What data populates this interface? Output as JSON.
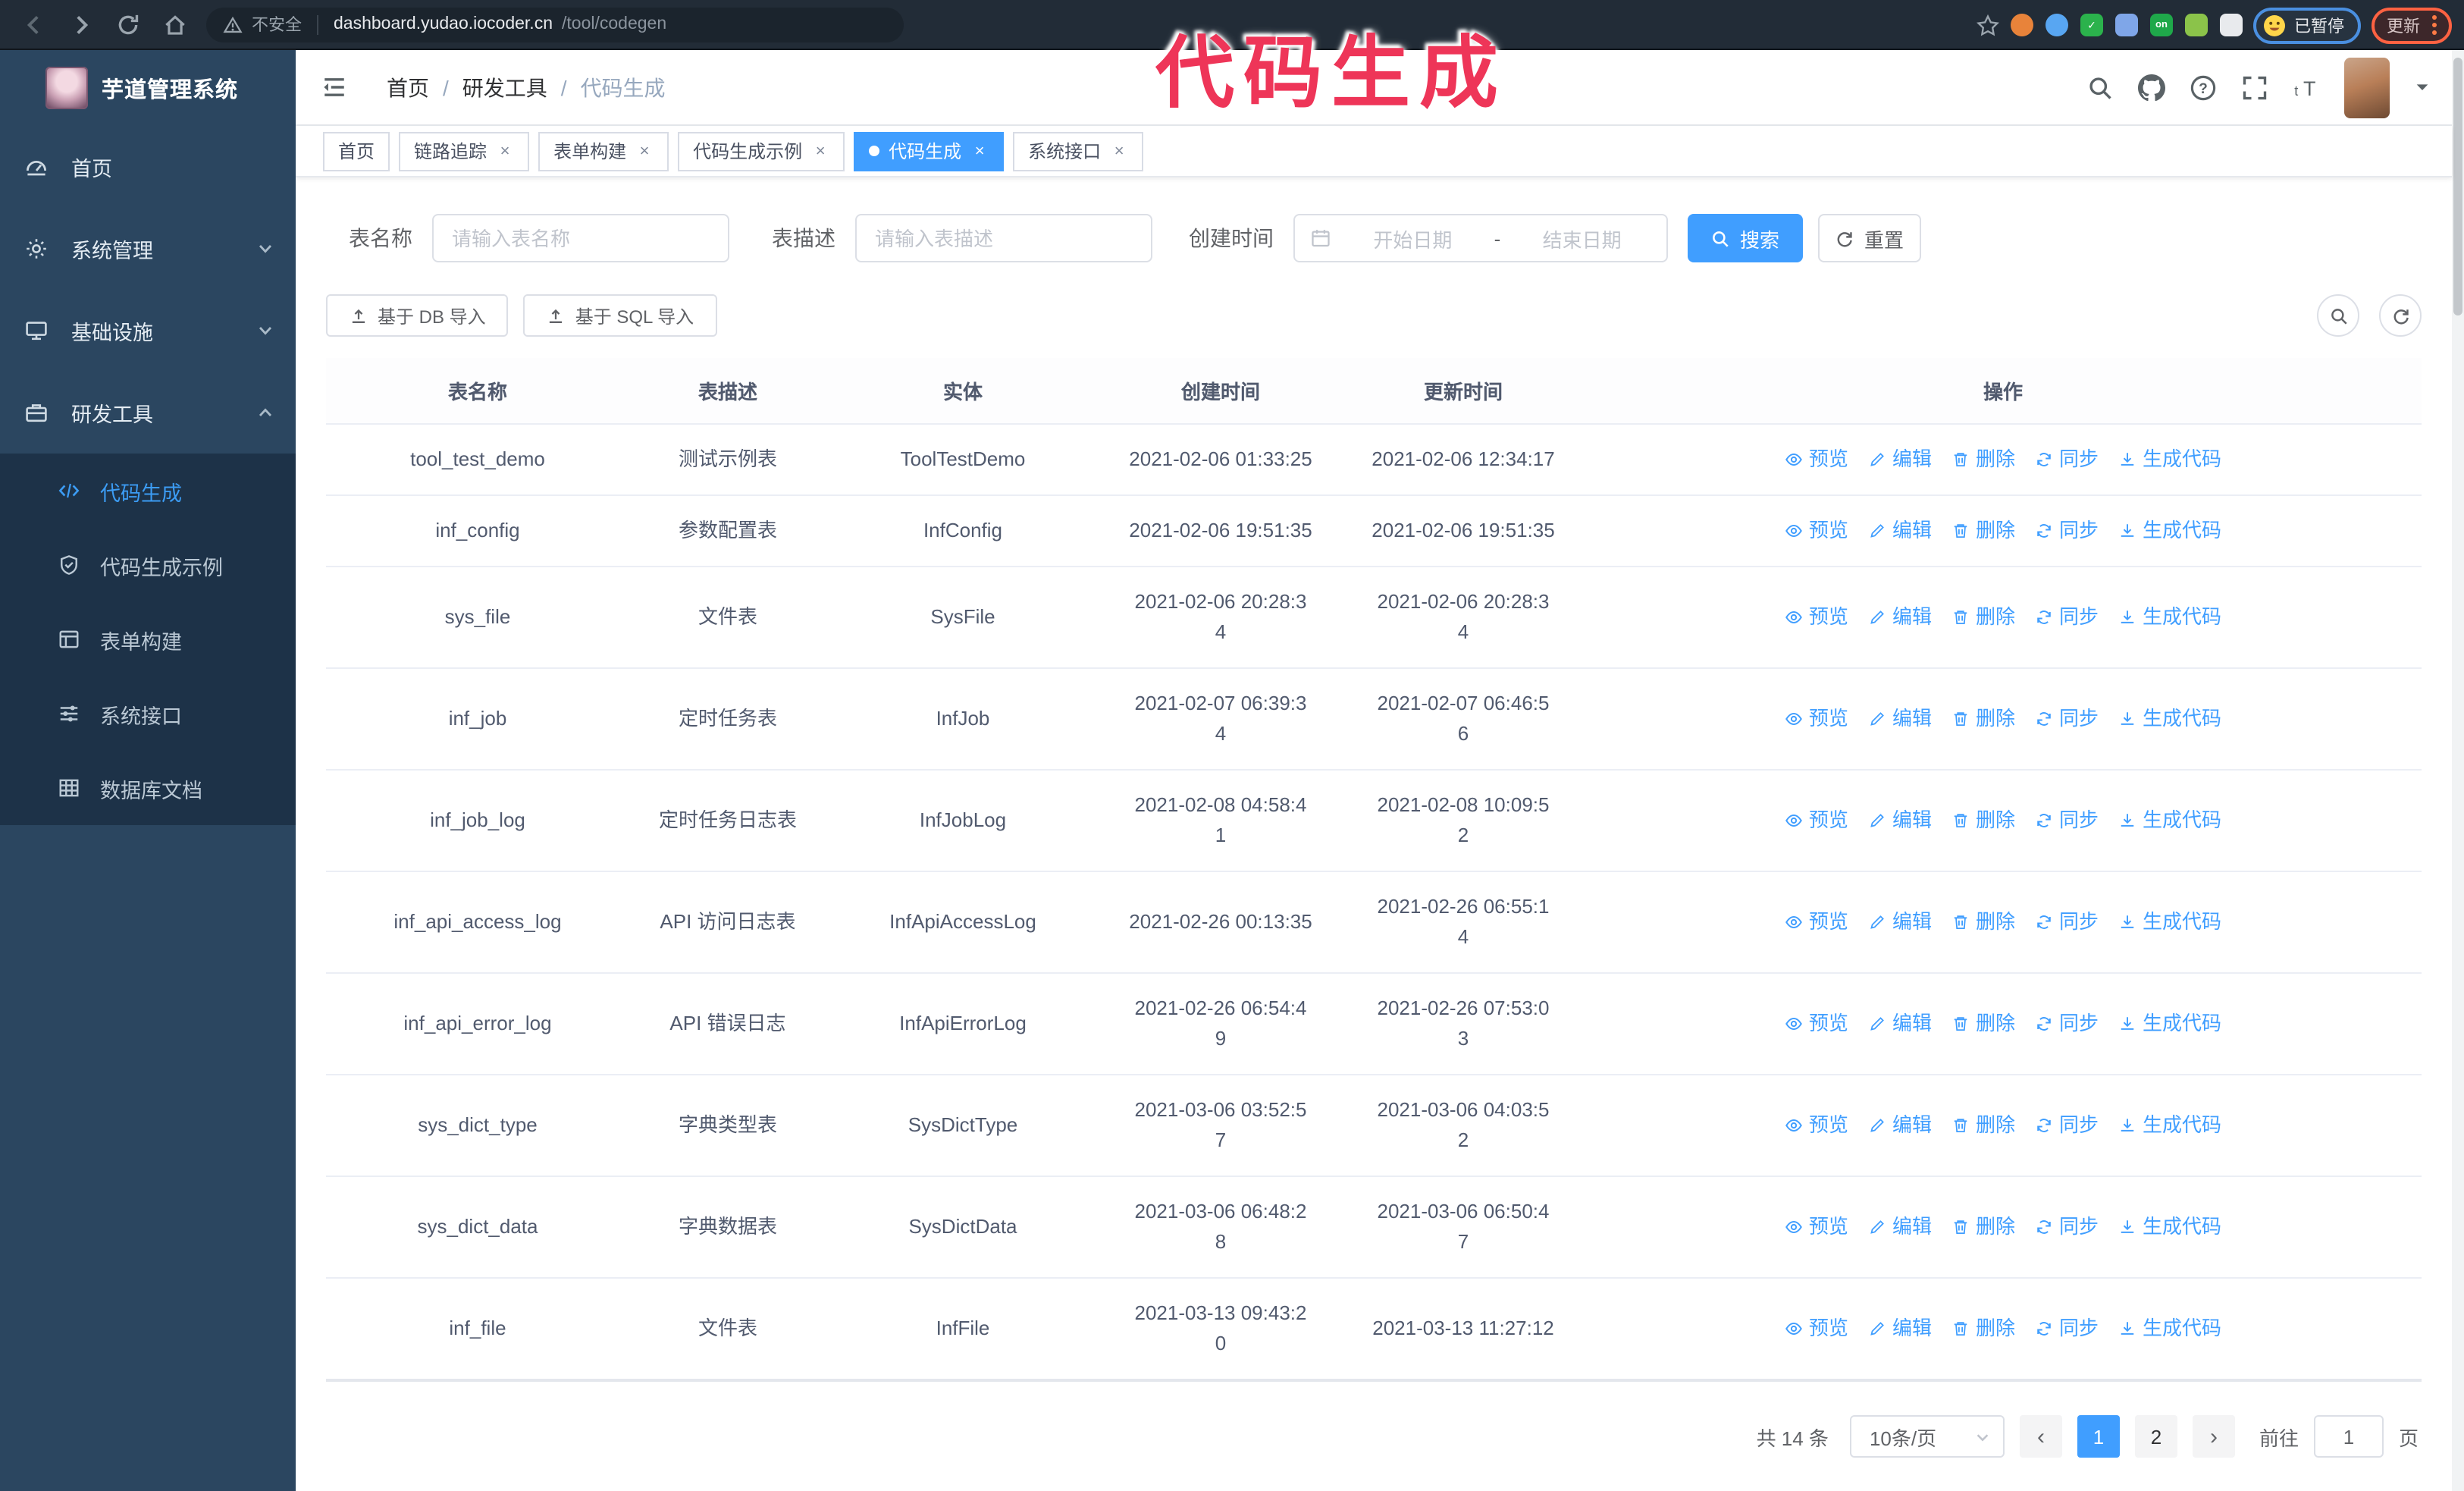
{
  "colors": {
    "accent": "#409eff",
    "annotation": "#ee3558",
    "sidebar_bg": "#2b4660",
    "submenu_bg": "#1d3248"
  },
  "annotation": {
    "text": "代码生成"
  },
  "browser": {
    "security_label": "不安全",
    "url_host": "dashboard.yudao.iocoder.cn",
    "url_path": "/tool/codegen",
    "paused_badge": "已暂停",
    "update_badge": "更新",
    "extensions": [
      {
        "name": "ext-orange",
        "color": "#e8833a",
        "label": ""
      },
      {
        "name": "ext-blue-drop",
        "color": "#58a6f2",
        "label": ""
      },
      {
        "name": "ext-green-check",
        "color": "#2bb24c",
        "label": "✓"
      },
      {
        "name": "ext-grid",
        "color": "#7fa6e8",
        "label": ""
      },
      {
        "name": "ext-on",
        "color": "#1fa84a",
        "label": "on"
      },
      {
        "name": "ext-alien",
        "color": "#8bc34a",
        "label": ""
      },
      {
        "name": "ext-puzzle",
        "color": "#e8eaed",
        "label": ""
      }
    ]
  },
  "sidebar": {
    "app_title": "芋道管理系统",
    "items": [
      {
        "label": "首页",
        "icon": "home-icon",
        "chevron": ""
      },
      {
        "label": "系统管理",
        "icon": "gear-icon",
        "chevron": "down"
      },
      {
        "label": "基础设施",
        "icon": "infrastructure-icon",
        "chevron": "down"
      },
      {
        "label": "研发工具",
        "icon": "dev-tools-icon",
        "chevron": "up"
      }
    ],
    "sub_items": [
      {
        "label": "代码生成",
        "icon": "code-icon",
        "active": true
      },
      {
        "label": "代码生成示例",
        "icon": "example-icon",
        "active": false
      },
      {
        "label": "表单构建",
        "icon": "form-builder-icon",
        "active": false
      },
      {
        "label": "系统接口",
        "icon": "api-icon",
        "active": false
      },
      {
        "label": "数据库文档",
        "icon": "database-doc-icon",
        "active": false
      }
    ]
  },
  "breadcrumb": {
    "items": [
      "首页",
      "研发工具",
      "代码生成"
    ],
    "separator": "/"
  },
  "tabs": [
    {
      "label": "首页",
      "closable": false,
      "active": false
    },
    {
      "label": "链路追踪",
      "closable": true,
      "active": false
    },
    {
      "label": "表单构建",
      "closable": true,
      "active": false
    },
    {
      "label": "代码生成示例",
      "closable": true,
      "active": false
    },
    {
      "label": "代码生成",
      "closable": true,
      "active": true
    },
    {
      "label": "系统接口",
      "closable": true,
      "active": false
    }
  ],
  "search": {
    "name_label": "表名称",
    "name_placeholder": "请输入表名称",
    "desc_label": "表描述",
    "desc_placeholder": "请输入表描述",
    "time_label": "创建时间",
    "start_placeholder": "开始日期",
    "range_separator": "-",
    "end_placeholder": "结束日期",
    "search_button": "搜索",
    "reset_button": "重置"
  },
  "toolbar": {
    "import_db_button": "基于 DB 导入",
    "import_sql_button": "基于 SQL 导入"
  },
  "table": {
    "columns": [
      "表名称",
      "表描述",
      "实体",
      "创建时间",
      "更新时间",
      "操作"
    ],
    "actions": [
      {
        "name": "preview",
        "label": "预览",
        "icon": "eye-icon"
      },
      {
        "name": "edit",
        "label": "编辑",
        "icon": "edit-icon"
      },
      {
        "name": "delete",
        "label": "删除",
        "icon": "delete-icon"
      },
      {
        "name": "sync",
        "label": "同步",
        "icon": "sync-icon"
      },
      {
        "name": "generate",
        "label": "生成代码",
        "icon": "download-icon"
      }
    ],
    "rows": [
      {
        "name": "tool_test_demo",
        "desc": "测试示例表",
        "entity": "ToolTestDemo",
        "created": "2021-02-06 01:33:25",
        "updated": "2021-02-06 12:34:17"
      },
      {
        "name": "inf_config",
        "desc": "参数配置表",
        "entity": "InfConfig",
        "created": "2021-02-06 19:51:35",
        "updated": "2021-02-06 19:51:35"
      },
      {
        "name": "sys_file",
        "desc": "文件表",
        "entity": "SysFile",
        "created": "2021-02-06 20:28:3\n4",
        "updated": "2021-02-06 20:28:3\n4"
      },
      {
        "name": "inf_job",
        "desc": "定时任务表",
        "entity": "InfJob",
        "created": "2021-02-07 06:39:3\n4",
        "updated": "2021-02-07 06:46:5\n6"
      },
      {
        "name": "inf_job_log",
        "desc": "定时任务日志表",
        "entity": "InfJobLog",
        "created": "2021-02-08 04:58:4\n1",
        "updated": "2021-02-08 10:09:5\n2"
      },
      {
        "name": "inf_api_access_log",
        "desc": "API 访问日志表",
        "entity": "InfApiAccessLog",
        "created": "2021-02-26 00:13:35",
        "updated": "2021-02-26 06:55:1\n4"
      },
      {
        "name": "inf_api_error_log",
        "desc": "API 错误日志",
        "entity": "InfApiErrorLog",
        "created": "2021-02-26 06:54:4\n9",
        "updated": "2021-02-26 07:53:0\n3"
      },
      {
        "name": "sys_dict_type",
        "desc": "字典类型表",
        "entity": "SysDictType",
        "created": "2021-03-06 03:52:5\n7",
        "updated": "2021-03-06 04:03:5\n2"
      },
      {
        "name": "sys_dict_data",
        "desc": "字典数据表",
        "entity": "SysDictData",
        "created": "2021-03-06 06:48:2\n8",
        "updated": "2021-03-06 06:50:4\n7"
      },
      {
        "name": "inf_file",
        "desc": "文件表",
        "entity": "InfFile",
        "created": "2021-03-13 09:43:2\n0",
        "updated": "2021-03-13 11:27:12"
      }
    ]
  },
  "pagination": {
    "total": "共 14 条",
    "page_size": "10条/页",
    "pages": [
      "1",
      "2"
    ],
    "active_page": "1",
    "prev": "‹",
    "next": "›",
    "goto_label": "前往",
    "goto_value": "1",
    "page_unit": "页"
  }
}
